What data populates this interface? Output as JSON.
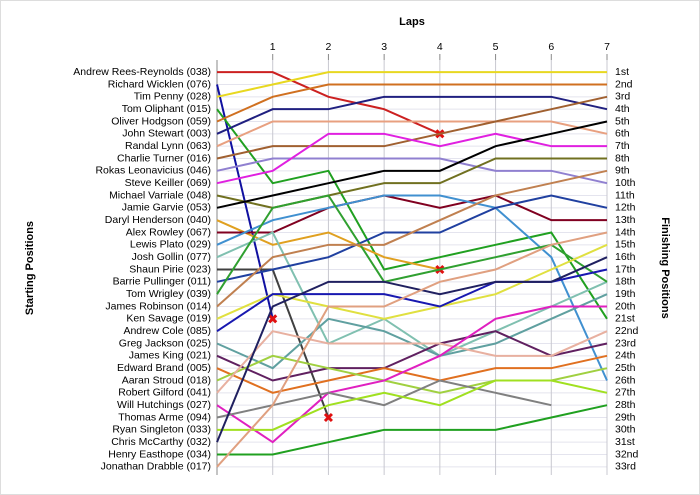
{
  "chart_data": {
    "type": "bump",
    "title": "Laps",
    "y_label": "Starting Positions",
    "y2_label": "Finishing Positions",
    "x": [
      0,
      1,
      2,
      3,
      4,
      5,
      6,
      7
    ],
    "xlim": [
      0,
      7
    ],
    "xticks": [
      1,
      2,
      3,
      4,
      5,
      6,
      7
    ],
    "ylim": [
      0.5,
      33.5
    ],
    "y_inverted": true,
    "y2lim": [
      0.5,
      33.5
    ],
    "y2ticks": [
      {
        "value": 1,
        "label": "1st"
      },
      {
        "value": 2,
        "label": "2nd"
      },
      {
        "value": 3,
        "label": "3rd"
      },
      {
        "value": 4,
        "label": "4th"
      },
      {
        "value": 5,
        "label": "5th"
      },
      {
        "value": 6,
        "label": "6th"
      },
      {
        "value": 7,
        "label": "7th"
      },
      {
        "value": 8,
        "label": "8th"
      },
      {
        "value": 9,
        "label": "9th"
      },
      {
        "value": 10,
        "label": "10th"
      },
      {
        "value": 11,
        "label": "11th"
      },
      {
        "value": 12,
        "label": "12th"
      },
      {
        "value": 13,
        "label": "13th"
      },
      {
        "value": 14,
        "label": "14th"
      },
      {
        "value": 15,
        "label": "15th"
      },
      {
        "value": 16,
        "label": "16th"
      },
      {
        "value": 17,
        "label": "17th"
      },
      {
        "value": 18,
        "label": "18th"
      },
      {
        "value": 19,
        "label": "19th"
      },
      {
        "value": 20,
        "label": "20th"
      },
      {
        "value": 21,
        "label": "21st"
      },
      {
        "value": 22,
        "label": "22nd"
      },
      {
        "value": 23,
        "label": "23rd"
      },
      {
        "value": 24,
        "label": "24th"
      },
      {
        "value": 25,
        "label": "25th"
      },
      {
        "value": 26,
        "label": "26th"
      },
      {
        "value": 27,
        "label": "27th"
      },
      {
        "value": 28,
        "label": "28th"
      },
      {
        "value": 29,
        "label": "29th"
      },
      {
        "value": 30,
        "label": "30th"
      },
      {
        "value": 31,
        "label": "31st"
      },
      {
        "value": 32,
        "label": "32nd"
      },
      {
        "value": 33,
        "label": "33rd"
      }
    ],
    "grid": true,
    "series": [
      {
        "name": "Andrew Rees-Reynolds (038)",
        "color": "#cc2020",
        "values": [
          1,
          1,
          3,
          4,
          6,
          null,
          null,
          null
        ],
        "end_marker": "x"
      },
      {
        "name": "Richard Wicklen (076)",
        "color": "#1010a0",
        "values": [
          2,
          21,
          null,
          null,
          null,
          null,
          null,
          null
        ],
        "end_marker": "x"
      },
      {
        "name": "Tim Penny (028)",
        "color": "#e8d820",
        "values": [
          3,
          2,
          1,
          1,
          1,
          1,
          1,
          1
        ]
      },
      {
        "name": "Tom Oliphant (015)",
        "color": "#20a020",
        "values": [
          4,
          10,
          9,
          17,
          16,
          15,
          14,
          21
        ]
      },
      {
        "name": "Oliver Hodgson (059)",
        "color": "#d07020",
        "values": [
          5,
          3,
          2,
          2,
          2,
          2,
          2,
          2
        ]
      },
      {
        "name": "John Stewart (003)",
        "color": "#202080",
        "values": [
          6,
          4,
          4,
          3,
          3,
          3,
          3,
          4
        ]
      },
      {
        "name": "Randal Lynn (063)",
        "color": "#e8a080",
        "values": [
          7,
          5,
          5,
          5,
          5,
          5,
          5,
          6
        ]
      },
      {
        "name": "Charlie Turner (016)",
        "color": "#a06030",
        "values": [
          8,
          7,
          7,
          7,
          6,
          5,
          4,
          3
        ]
      },
      {
        "name": "Rokas Leonavicius (046)",
        "color": "#9080d0",
        "values": [
          9,
          8,
          8,
          8,
          8,
          9,
          9,
          10
        ]
      },
      {
        "name": "Steve Keiller (069)",
        "color": "#e020e0",
        "values": [
          10,
          9,
          6,
          6,
          7,
          6,
          7,
          7
        ]
      },
      {
        "name": "Michael Varriale (048)",
        "color": "#707020",
        "values": [
          11,
          12,
          11,
          10,
          10,
          8,
          8,
          8
        ]
      },
      {
        "name": "Jamie Garvie (053)",
        "color": "#000000",
        "values": [
          12,
          11,
          10,
          9,
          9,
          7,
          6,
          5
        ]
      },
      {
        "name": "Daryl Henderson (040)",
        "color": "#e0a020",
        "values": [
          13,
          15,
          14,
          16,
          17,
          null,
          null,
          null
        ],
        "end_marker": "x"
      },
      {
        "name": "Alex Rowley (067)",
        "color": "#800020",
        "values": [
          14,
          14,
          12,
          11,
          12,
          11,
          13,
          13
        ]
      },
      {
        "name": "Lewis Plato (029)",
        "color": "#4090d0",
        "values": [
          15,
          13,
          12,
          11,
          11,
          12,
          16,
          26
        ]
      },
      {
        "name": "Josh Gollin (077)",
        "color": "#80c0b0",
        "values": [
          16,
          14,
          23,
          21,
          24,
          22,
          20,
          18
        ]
      },
      {
        "name": "Shaun Pirie (023)",
        "color": "#404040",
        "values": [
          17,
          17,
          29,
          null,
          null,
          null,
          null,
          null
        ],
        "end_marker": "x"
      },
      {
        "name": "Barrie Pullinger (011)",
        "color": "#2040a0",
        "values": [
          18,
          17,
          16,
          14,
          14,
          12,
          11,
          12
        ]
      },
      {
        "name": "Tom Wrigley (039)",
        "color": "#30a030",
        "values": [
          19,
          12,
          11,
          18,
          17,
          16,
          15,
          18
        ]
      },
      {
        "name": "James Robinson (014)",
        "color": "#c08050",
        "values": [
          20,
          16,
          15,
          15,
          13,
          11,
          10,
          9
        ]
      },
      {
        "name": "Ken Savage (019)",
        "color": "#e0e040",
        "values": [
          21,
          19,
          20,
          21,
          20,
          19,
          17,
          15
        ]
      },
      {
        "name": "Andrew Cole (085)",
        "color": "#1818b0",
        "values": [
          22,
          19,
          19,
          19,
          20,
          18,
          18,
          17
        ]
      },
      {
        "name": "Greg Jackson (025)",
        "color": "#60a0a0",
        "values": [
          23,
          25,
          21,
          22,
          24,
          23,
          21,
          19
        ]
      },
      {
        "name": "James King (021)",
        "color": "#602060",
        "values": [
          24,
          26,
          25,
          25,
          23,
          22,
          24,
          23
        ]
      },
      {
        "name": "Edward Brand (005)",
        "color": "#e07020",
        "values": [
          25,
          27,
          26,
          25,
          26,
          25,
          25,
          24
        ]
      },
      {
        "name": "Aaran Stroud (018)",
        "color": "#a0d040",
        "values": [
          26,
          24,
          25,
          26,
          27,
          26,
          26,
          25
        ]
      },
      {
        "name": "Robert Gilford (041)",
        "color": "#e8b0a0",
        "values": [
          27,
          22,
          23,
          23,
          23,
          24,
          24,
          22
        ]
      },
      {
        "name": "Will Hutchings (027)",
        "color": "#e020c0",
        "values": [
          28,
          31,
          27,
          26,
          24,
          21,
          20,
          20
        ]
      },
      {
        "name": "Thomas Arme (094)",
        "color": "#808080",
        "values": [
          29,
          28,
          27,
          28,
          26,
          27,
          28,
          null
        ]
      },
      {
        "name": "Ryan Singleton (033)",
        "color": "#a0e020",
        "values": [
          30,
          30,
          28,
          27,
          28,
          26,
          26,
          27
        ]
      },
      {
        "name": "Chris McCarthy (032)",
        "color": "#202060",
        "values": [
          31,
          20,
          18,
          18,
          19,
          18,
          18,
          16
        ]
      },
      {
        "name": "Henry Easthope (034)",
        "color": "#20a020",
        "values": [
          32,
          32,
          31,
          30,
          30,
          30,
          29,
          28
        ]
      },
      {
        "name": "Jonathan Drabble (017)",
        "color": "#e0a080",
        "values": [
          33,
          28,
          20,
          20,
          18,
          17,
          15,
          14
        ]
      }
    ]
  }
}
